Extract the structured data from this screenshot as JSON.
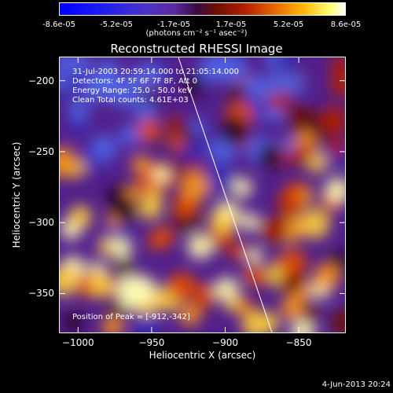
{
  "colorbar": {
    "ticks": [
      "-8.6e-05",
      "-5.2e-05",
      "-1.7e-05",
      "1.7e-05",
      "5.2e-05",
      "8.6e-05"
    ],
    "unit_label": "(photons cm⁻² s⁻¹ asec⁻²)"
  },
  "chart_data": {
    "type": "heatmap",
    "title": "Reconstructed RHESSI Image",
    "xlabel": "Heliocentric X (arcsec)",
    "ylabel": "Heliocentric Y (arcsec)",
    "xlim": [
      -1013,
      -818
    ],
    "ylim": [
      -378,
      -183
    ],
    "x_ticks": [
      -1000,
      -950,
      -900,
      -850
    ],
    "y_ticks": [
      -200,
      -250,
      -300,
      -350
    ],
    "x_tick_labels": [
      "−1000",
      "−950",
      "−900",
      "−850"
    ],
    "y_tick_labels": [
      "−200",
      "−250",
      "−300",
      "−350"
    ],
    "colorbar_range": [
      -8.6e-05,
      8.6e-05
    ],
    "limb_line": [
      [
        -932,
        -183
      ],
      [
        -868,
        -378
      ]
    ],
    "peak_position": [
      -912,
      -342
    ],
    "colors": {
      "background": "#000000",
      "limb": "#ffffff"
    }
  },
  "annotations": {
    "time_range": "31-Jul-2003 20:59:14.000 to 21:05:14.000",
    "detectors": "Detectors: 4F 5F 6F 7F 8F, Att 0",
    "energy_range": "Energy Range: 25.0 - 50.0 keV",
    "clean_counts": "Clean     Total counts: 4.61E+03",
    "peak_text": "Position of Peak = [-912,-342]"
  },
  "footer": {
    "date": "4-Jun-2013 20:24"
  }
}
